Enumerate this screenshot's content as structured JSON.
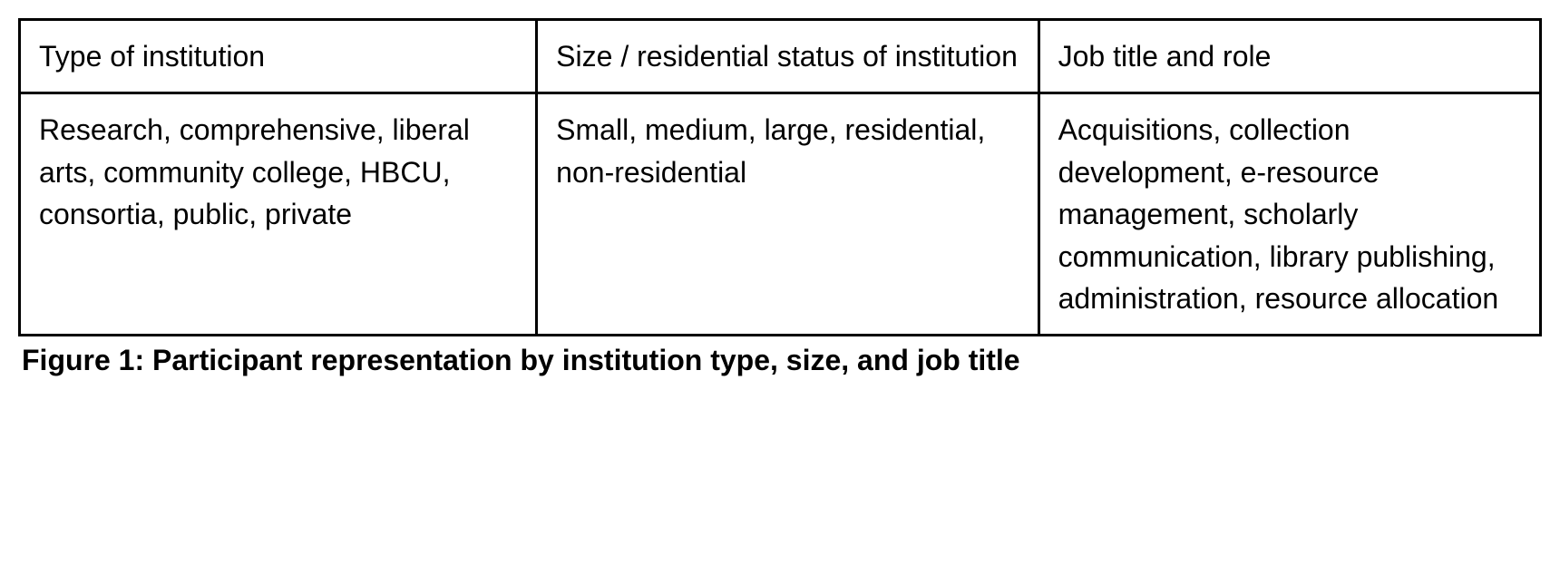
{
  "table": {
    "type": "table",
    "border_color": "#000000",
    "border_width": 3,
    "background_color": "#ffffff",
    "text_color": "#000000",
    "font_size": 32,
    "columns": [
      {
        "header": "Type of institution",
        "width_pct": 34,
        "align": "left"
      },
      {
        "header": "Size / residential status of institution",
        "width_pct": 33,
        "align": "left"
      },
      {
        "header": "Job title and role",
        "width_pct": 33,
        "align": "left"
      }
    ],
    "rows": [
      [
        "Research, comprehensive, liberal arts, community college, HBCU, consortia, public, private",
        "Small, medium, large, residential, non-residential",
        "Acquisitions, collection development, e-resource management, scholarly communication, library publishing, administration, resource allocation"
      ]
    ]
  },
  "caption": "Figure 1: Participant representation by institution type, size, and job title"
}
